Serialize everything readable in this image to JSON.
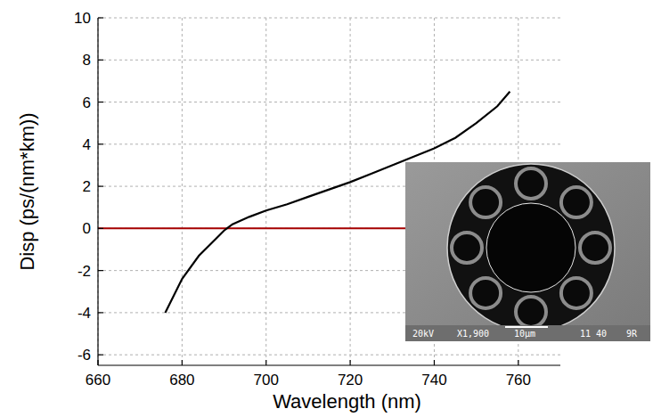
{
  "chart_data": {
    "type": "line",
    "x_label": "Wavelength (nm)",
    "y_label": "Disp (ps/(nm*km))",
    "x": [
      676,
      680,
      684,
      688,
      690,
      692,
      696,
      700,
      705,
      710,
      715,
      720,
      725,
      730,
      735,
      740,
      745,
      750,
      755,
      758
    ],
    "values": [
      -4.0,
      -2.4,
      -1.3,
      -0.5,
      -0.1,
      0.2,
      0.55,
      0.85,
      1.15,
      1.5,
      1.85,
      2.2,
      2.6,
      3.0,
      3.4,
      3.8,
      4.3,
      5.0,
      5.8,
      6.5
    ],
    "color": "#000000",
    "line_style": "solid",
    "xlim": [
      660,
      770
    ],
    "ylim": [
      -6.5,
      10
    ],
    "xticks": [
      660,
      680,
      700,
      720,
      740,
      760
    ],
    "yticks": [
      -6,
      -4,
      -2,
      0,
      2,
      4,
      6,
      8,
      10
    ],
    "grid": true,
    "reference_lines": [
      {
        "value": 0,
        "color": "#a50000"
      }
    ],
    "annotations": [
      "20kV",
      "X1,900",
      "10µm",
      "11 40",
      "9R"
    ]
  }
}
